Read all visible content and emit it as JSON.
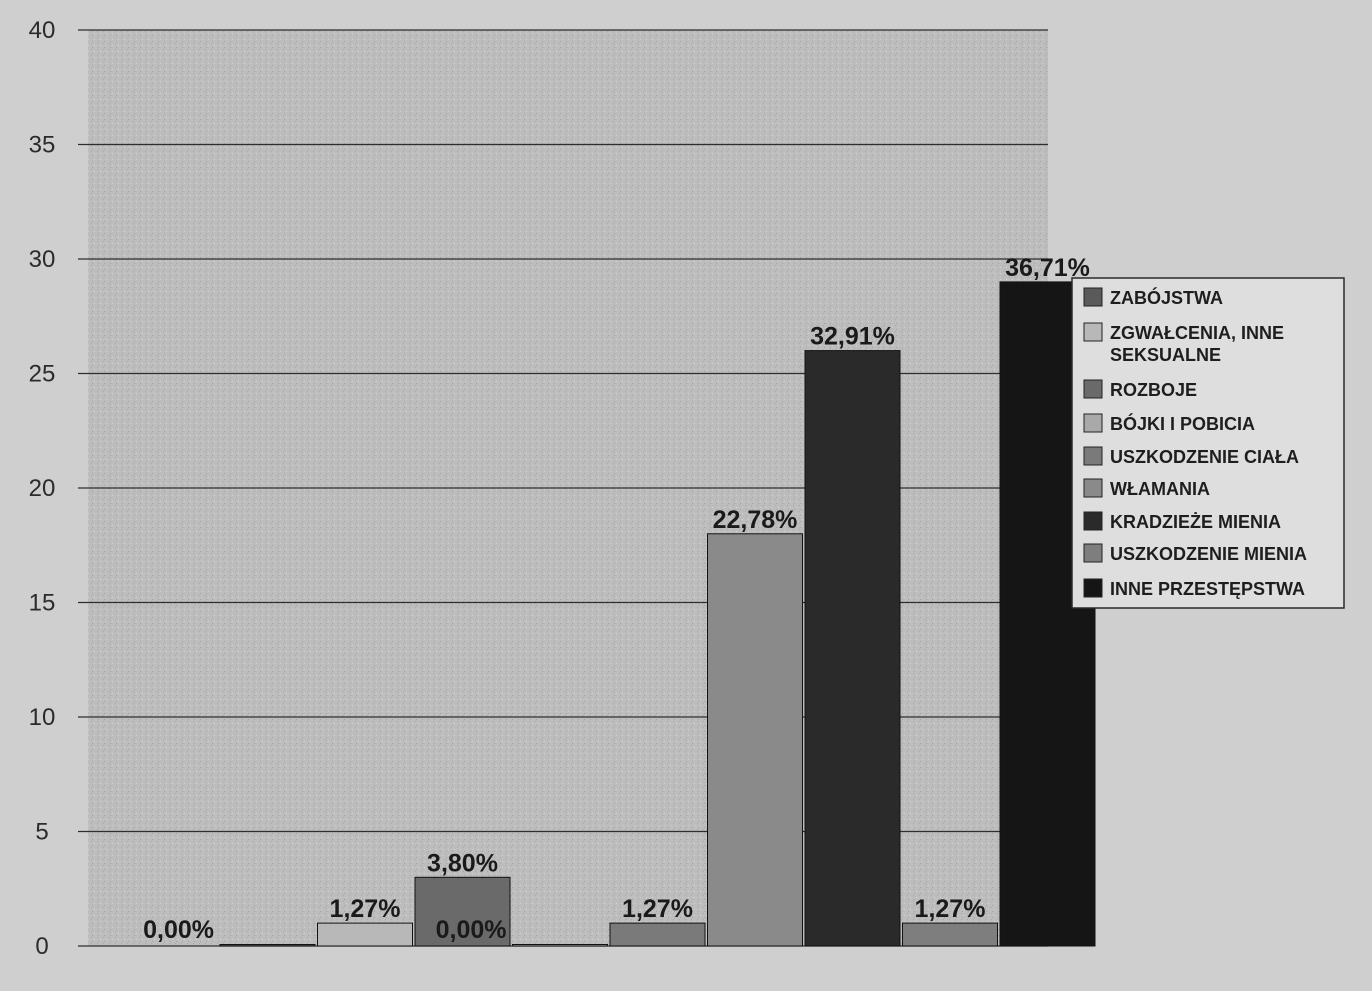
{
  "chart_data": {
    "type": "bar",
    "title": "",
    "xlabel": "",
    "ylabel": "",
    "ylim": [
      0,
      40
    ],
    "yticks": [
      0,
      5,
      10,
      15,
      20,
      25,
      30,
      35,
      40
    ],
    "grid": true,
    "legend_position": "right",
    "series": [
      {
        "name": "ZABÓJSTWA",
        "value": 0.0,
        "label": "0,00%",
        "color": "#5a5a5a"
      },
      {
        "name": "ZGWAŁCENIA, INNE SEKSUALNE",
        "value": 1.0,
        "label": "1,27%",
        "color": "#b8b8b8"
      },
      {
        "name": "ROZBOJE",
        "value": 3.0,
        "label": "3,80%",
        "color": "#6a6a6a"
      },
      {
        "name": "BÓJKI I  POBICIA",
        "value": 0.0,
        "label": "0,00%",
        "color": "#a9a9a9"
      },
      {
        "name": "USZKODZENIE CIAŁA",
        "value": 1.0,
        "label": "1,27%",
        "color": "#7a7a7a"
      },
      {
        "name": "WŁAMANIA",
        "value": 18.0,
        "label": "22,78%",
        "color": "#8a8a8a"
      },
      {
        "name": "KRADZIEŻE MIENIA",
        "value": 26.0,
        "label": "32,91%",
        "color": "#2a2a2a"
      },
      {
        "name": "USZKODZENIE MIENIA",
        "value": 1.0,
        "label": "1,27%",
        "color": "#7e7e7e"
      },
      {
        "name": "INNE PRZESTĘPSTWA",
        "value": 29.0,
        "label": "36,71%",
        "color": "#151515"
      }
    ]
  }
}
